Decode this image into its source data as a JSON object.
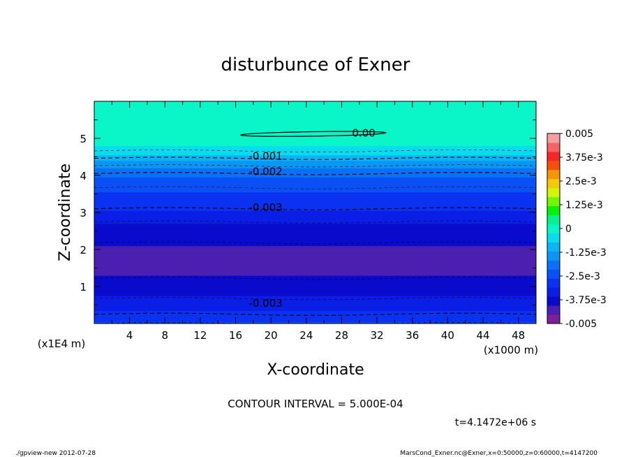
{
  "chart_data": {
    "type": "heatmap",
    "title": "disturbunce of Exner",
    "xlabel": "X-coordinate",
    "ylabel": "Z-coordinate",
    "x_scale_label": "(x1000 m)",
    "y_scale_label": "(x1E4 m)",
    "xlim": [
      0,
      50
    ],
    "ylim": [
      0,
      6
    ],
    "x_ticks": [
      4,
      8,
      12,
      16,
      20,
      24,
      28,
      32,
      36,
      40,
      44,
      48
    ],
    "x_tick_labels": [
      "4",
      "8",
      "12",
      "16",
      "20",
      "24",
      "28",
      "32",
      "36",
      "40",
      "44",
      "48"
    ],
    "y_ticks": [
      1,
      2,
      3,
      4,
      5
    ],
    "y_tick_labels": [
      "1",
      "2",
      "3",
      "4",
      "5"
    ],
    "colorbar": {
      "min": -0.005,
      "max": 0.005,
      "step": 0.0005,
      "tick_labels": [
        "0.005",
        "3.75e-3",
        "2.5e-3",
        "1.25e-3",
        "0",
        "-1.25e-3",
        "-2.5e-3",
        "-3.75e-3",
        "-0.005"
      ],
      "colors": [
        "#7d1f9b",
        "#4b1fb0",
        "#0a0acd",
        "#0a1ee6",
        "#0a32f0",
        "#0a50f5",
        "#0a70f5",
        "#0a96f5",
        "#0ab4f5",
        "#0adcf0",
        "#0af5c8",
        "#0af08c",
        "#0af00a",
        "#73f50a",
        "#d2f50a",
        "#f5c80a",
        "#f5960a",
        "#f5500a",
        "#f52828",
        "#f56464",
        "#f5a0a0"
      ]
    },
    "profile": {
      "z": [
        0.0,
        0.25,
        0.6,
        0.9,
        1.3,
        1.9,
        2.6,
        3.1,
        3.5,
        3.75,
        4.05,
        4.3,
        4.5,
        4.7,
        5.0,
        5.4,
        6.0
      ],
      "value": [
        -0.0025,
        -0.003,
        -0.0034,
        -0.0038,
        -0.00405,
        -0.0042,
        -0.0037,
        -0.003,
        -0.0027,
        -0.0024,
        -0.002,
        -0.0014,
        -0.0009,
        -0.0004,
        5e-05,
        0.0001,
        0.0001
      ]
    },
    "contours": [
      {
        "level": 0.0,
        "label": "0.00",
        "style": "solid"
      },
      {
        "level": -0.001,
        "label": "-0.001",
        "style": "dashed"
      },
      {
        "level": -0.002,
        "label": "-0.002",
        "style": "dashed"
      },
      {
        "level": -0.003,
        "label": "-0.003",
        "style": "dashed"
      },
      {
        "level": -0.003,
        "label": "-0.003",
        "style": "dashed"
      }
    ]
  },
  "contour_interval": "CONTOUR INTERVAL = 5.000E-04",
  "time_label": "t=4.1472e+06 s",
  "footer_left": "./gpview-new  2012-07-28",
  "footer_right": "MarsCond_Exner.nc@Exner,x=0:50000,z=0:60000,t=4147200"
}
